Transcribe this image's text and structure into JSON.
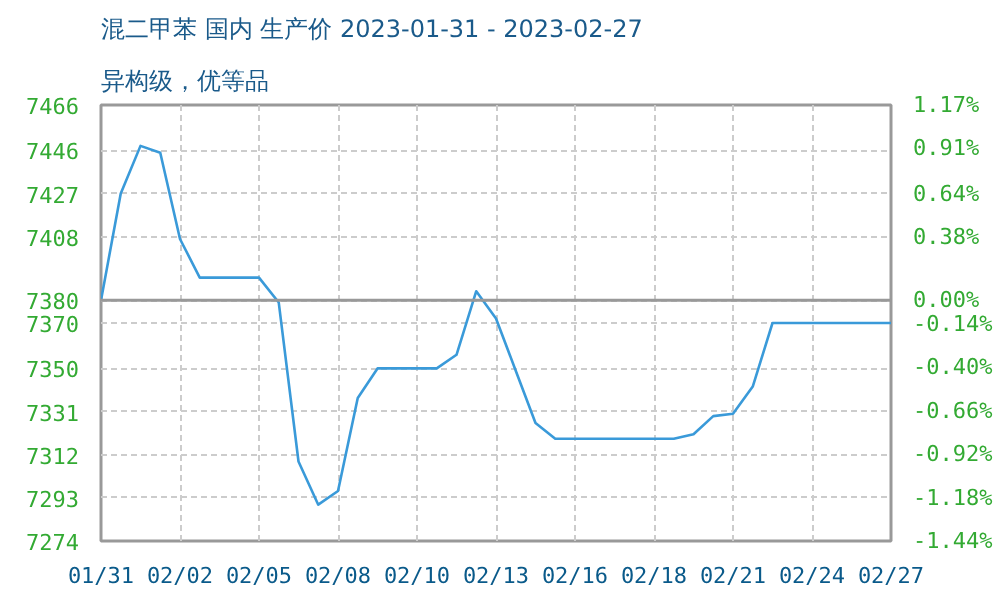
{
  "chart_data": {
    "type": "line",
    "title": "混二甲苯 国内 生产价 2023-01-31 - 2023-02-27",
    "subtitle": "异构级，优等品",
    "categories": [
      "01/31",
      null,
      null,
      null,
      "02/02",
      null,
      null,
      null,
      "02/05",
      null,
      null,
      null,
      "02/08",
      null,
      null,
      null,
      "02/10",
      null,
      null,
      null,
      "02/13",
      null,
      null,
      null,
      "02/16",
      null,
      null,
      null,
      "02/18",
      null,
      null,
      null,
      "02/21",
      null,
      null,
      null,
      "02/24",
      null,
      null,
      null,
      "02/27"
    ],
    "series": [
      {
        "color": "#3a9ad9",
        "values": [
          7380,
          7427,
          7448,
          7445,
          7407,
          7390,
          7390,
          7390,
          7390,
          7379,
          7309,
          7290,
          7296,
          7337,
          7350,
          7350,
          7350,
          7350,
          7356,
          7384,
          7372,
          7349,
          7326,
          7319,
          7319,
          7319,
          7319,
          7319,
          7319,
          7319,
          7321,
          7329,
          7330,
          7342,
          7370,
          7370,
          7370,
          7370,
          7370,
          7370,
          7370
        ]
      }
    ],
    "ylim": [
      7274,
      7466
    ],
    "yticks": [
      7274,
      7293,
      7312,
      7331,
      7350,
      7370,
      7380,
      7408,
      7427,
      7446,
      7466
    ],
    "y2lim": [
      -1.44,
      1.17
    ],
    "y2ticks": [
      {
        "value": -1.44,
        "label": "-1.44%"
      },
      {
        "value": -1.18,
        "label": "-1.18%"
      },
      {
        "value": -0.92,
        "label": "-0.92%"
      },
      {
        "value": -0.66,
        "label": "-0.66%"
      },
      {
        "value": -0.4,
        "label": "-0.40%"
      },
      {
        "value": -0.14,
        "label": "-0.14%"
      },
      {
        "value": 0,
        "label": "0.00%"
      },
      {
        "value": 0.38,
        "label": "0.38%"
      },
      {
        "value": 0.64,
        "label": "0.64%"
      },
      {
        "value": 0.91,
        "label": "0.91%"
      },
      {
        "value": 1.17,
        "label": "1.17%"
      }
    ],
    "ref_lines": [
      {
        "axis": "y",
        "value": 7380,
        "color": "#999999"
      }
    ],
    "grid": true,
    "marker": "none",
    "line_style": "solid"
  }
}
